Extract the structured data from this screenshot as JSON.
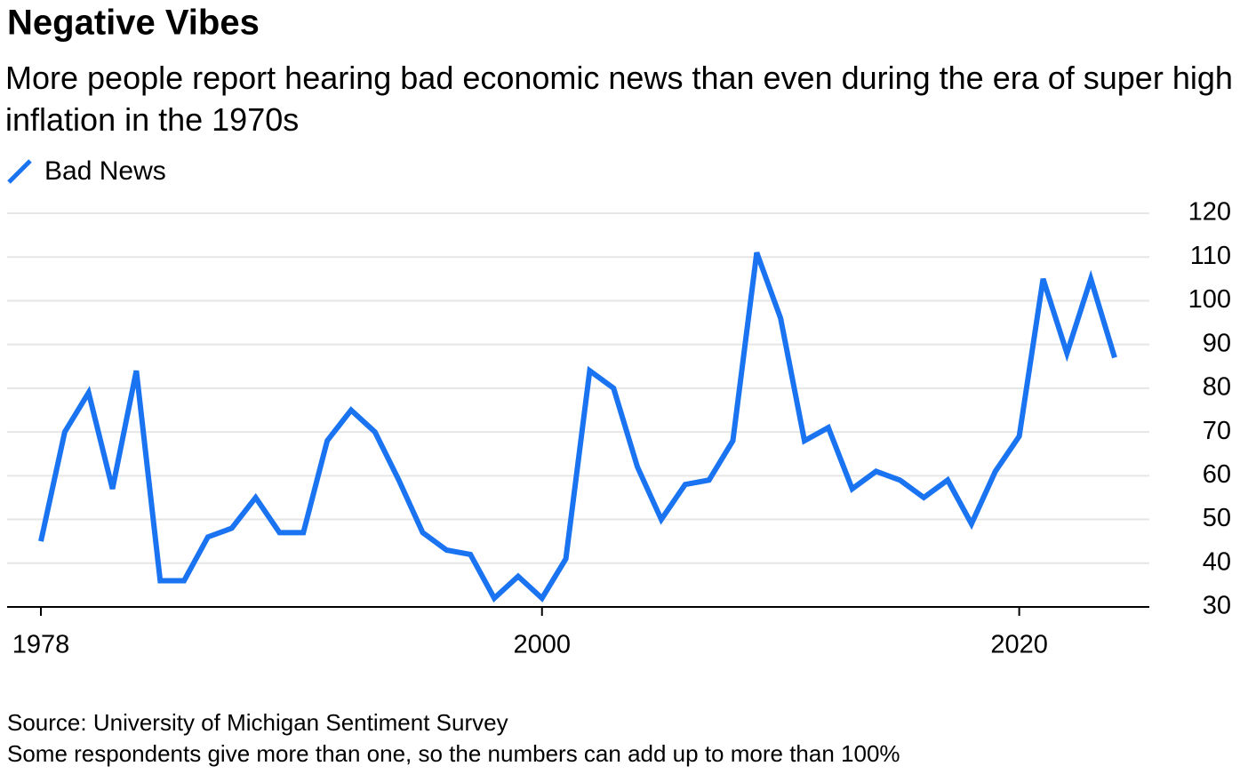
{
  "chart_data": {
    "type": "line",
    "title": "Negative Vibes",
    "subtitle": "More people report hearing bad economic news than even during the era of super high inflation in the 1970s",
    "categories": [
      "1978",
      null,
      null,
      null,
      null,
      null,
      null,
      null,
      null,
      null,
      null,
      null,
      null,
      null,
      null,
      null,
      null,
      null,
      null,
      null,
      null,
      "2000",
      null,
      null,
      null,
      null,
      null,
      null,
      null,
      null,
      null,
      null,
      null,
      null,
      null,
      null,
      null,
      null,
      null,
      null,
      null,
      "2020",
      null,
      null,
      null,
      null
    ],
    "series": [
      {
        "name": "Bad News",
        "color": "#1a73f0",
        "values": [
          45,
          70,
          79,
          57,
          84,
          36,
          36,
          46,
          48,
          55,
          47,
          47,
          68,
          75,
          70,
          59,
          47,
          43,
          42,
          32,
          37,
          32,
          41,
          84,
          80,
          62,
          50,
          58,
          59,
          68,
          111,
          96,
          68,
          71,
          57,
          61,
          59,
          55,
          59,
          49,
          61,
          69,
          105,
          88,
          105,
          87
        ]
      }
    ],
    "ylim": [
      30,
      120
    ],
    "yticks": [
      30,
      40,
      50,
      60,
      70,
      80,
      90,
      100,
      110,
      120
    ],
    "grid": true,
    "source": "Source: University of Michigan Sentiment Survey",
    "note": "Some respondents give more than one, so the numbers can add up to more than 100%"
  }
}
